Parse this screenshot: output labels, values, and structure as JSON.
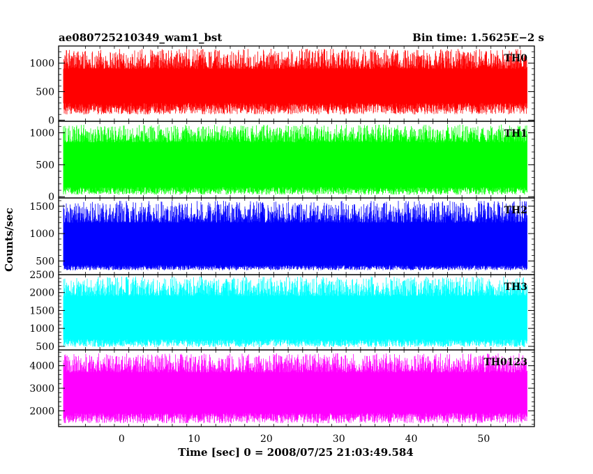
{
  "chart_data": {
    "type": "line",
    "title_left": "ae080725210349_wam1_bst",
    "title_right": "Bin time: 1.5625E−2 s",
    "xlabel": "Time [sec] 0 = 2008/07/25 21:03:49.584",
    "ylabel": "Counts/sec",
    "xlim": [
      -8.7,
      57
    ],
    "x_ticks": [
      0,
      10,
      20,
      30,
      40,
      50
    ],
    "x_tick_labels": [
      "0",
      "10",
      "20",
      "30",
      "40",
      "50"
    ],
    "x_data_range": [
      -8,
      56
    ],
    "bin_time": 0.015625,
    "panels": [
      {
        "name": "TH0",
        "color": "#ff0000",
        "ylim": [
          -20,
          1300
        ],
        "y_ticks": [
          0,
          500,
          1000
        ],
        "y_tick_labels": [
          "0",
          "500",
          "1000"
        ],
        "signal_range": [
          100,
          1250
        ],
        "baseline_range": [
          300,
          900
        ]
      },
      {
        "name": "TH1",
        "color": "#00ff00",
        "ylim": [
          -20,
          1180
        ],
        "y_ticks": [
          0,
          500,
          1000
        ],
        "y_tick_labels": [
          "0",
          "500",
          "1000"
        ],
        "signal_range": [
          30,
          1130
        ],
        "baseline_range": [
          150,
          850
        ]
      },
      {
        "name": "TH2",
        "color": "#0000ff",
        "ylim": [
          250,
          1650
        ],
        "y_ticks": [
          500,
          1000,
          1500
        ],
        "y_tick_labels": [
          "500",
          "1000",
          "1500"
        ],
        "signal_range": [
          330,
          1600
        ],
        "baseline_range": [
          420,
          1200
        ]
      },
      {
        "name": "TH3",
        "color": "#00ffff",
        "ylim": [
          400,
          2500
        ],
        "y_ticks": [
          500,
          1000,
          1500,
          2000,
          2500
        ],
        "y_tick_labels": [
          "500",
          "1000",
          "1500",
          "2000",
          "2500"
        ],
        "signal_range": [
          480,
          2450
        ],
        "baseline_range": [
          700,
          1900
        ]
      },
      {
        "name": "TH0123",
        "color": "#ff00ff",
        "ylim": [
          1300,
          4700
        ],
        "y_ticks": [
          2000,
          3000,
          4000
        ],
        "y_tick_labels": [
          "2000",
          "3000",
          "4000"
        ],
        "signal_range": [
          1450,
          4550
        ],
        "baseline_range": [
          1900,
          3700
        ]
      }
    ]
  }
}
